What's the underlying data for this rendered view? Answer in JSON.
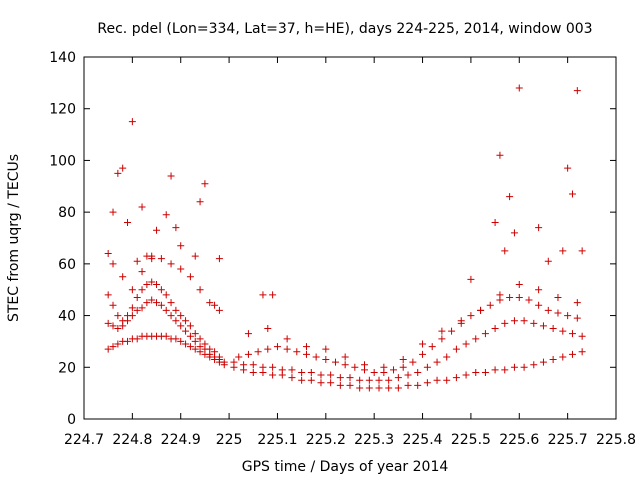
{
  "chart_data": {
    "type": "scatter",
    "title": "Rec. pdel (Lon=334, Lat=37, h=HE), days 224-225, 2014, window 003",
    "xlabel": "GPS time / Days of year 2014",
    "ylabel": "STEC from uqrg / TECUs",
    "xlim": [
      224.7,
      225.8
    ],
    "ylim": [
      0,
      140
    ],
    "xticks": [
      224.7,
      224.8,
      224.9,
      225,
      225.1,
      225.2,
      225.3,
      225.4,
      225.5,
      225.6,
      225.7,
      225.8
    ],
    "xtick_labels": [
      "224.7",
      "224.8",
      "224.9",
      "225",
      "225.1",
      "225.2",
      "225.3",
      "225.4",
      "225.5",
      "225.6",
      "225.7",
      "225.8"
    ],
    "yticks": [
      0,
      20,
      40,
      60,
      80,
      100,
      120,
      140
    ],
    "ytick_labels": [
      "0",
      "20",
      "40",
      "60",
      "80",
      "100",
      "120",
      "140"
    ],
    "grid": false,
    "legend": "none",
    "marker": "+",
    "color": "#cc0000",
    "series": [
      {
        "x": [
          224.75,
          224.76,
          224.77,
          224.78,
          224.79,
          224.8,
          224.81,
          224.82,
          224.83,
          224.84,
          224.85,
          224.86,
          224.87,
          224.88,
          224.89,
          224.9,
          224.91,
          224.92,
          224.93,
          224.94,
          224.95,
          224.96,
          224.97,
          224.98,
          224.99,
          225.01,
          225.03,
          225.05,
          225.07,
          225.09,
          225.11,
          225.13,
          225.15,
          225.17,
          225.19,
          225.21,
          225.23,
          225.25,
          225.27,
          225.29,
          225.31,
          225.33,
          225.35,
          225.37,
          225.39,
          225.41,
          225.43,
          225.45,
          225.47,
          225.49,
          225.51,
          225.53,
          225.55,
          225.57,
          225.59,
          225.61,
          225.63,
          225.65,
          225.67,
          225.69,
          225.71,
          225.73
        ],
        "y": [
          27,
          28,
          29,
          30,
          30,
          31,
          31,
          32,
          32,
          32,
          32,
          32,
          32,
          31,
          31,
          30,
          29,
          28,
          27,
          26,
          25,
          24,
          23,
          22,
          21,
          20,
          19,
          18,
          18,
          17,
          17,
          16,
          15,
          15,
          14,
          14,
          13,
          13,
          12,
          12,
          12,
          12,
          12,
          13,
          13,
          14,
          15,
          15,
          16,
          17,
          18,
          18,
          19,
          19,
          20,
          20,
          21,
          22,
          23,
          24,
          25,
          26
        ]
      },
      {
        "x": [
          224.75,
          224.76,
          224.77,
          224.78,
          224.79,
          224.8,
          224.81,
          224.82,
          224.83,
          224.84,
          224.85,
          224.86,
          224.87,
          224.88,
          224.89,
          224.9,
          224.91,
          224.92,
          224.93,
          224.94,
          224.95,
          224.96,
          224.97,
          224.98,
          224.99,
          225.01,
          225.03,
          225.05,
          225.07,
          225.09,
          225.11,
          225.13,
          225.15,
          225.17,
          225.19,
          225.21,
          225.23,
          225.25,
          225.27,
          225.29,
          225.31,
          225.33,
          225.35,
          225.37,
          225.39,
          225.41,
          225.43,
          225.45,
          225.47,
          225.49,
          225.51,
          225.53,
          225.55,
          225.57,
          225.59,
          225.61,
          225.63,
          225.65,
          225.67,
          225.69,
          225.71,
          225.73
        ],
        "y": [
          37,
          36,
          35,
          36,
          38,
          40,
          42,
          43,
          45,
          46,
          45,
          44,
          42,
          40,
          38,
          36,
          34,
          32,
          30,
          28,
          27,
          25,
          24,
          23,
          22,
          22,
          21,
          21,
          20,
          20,
          19,
          19,
          18,
          18,
          17,
          17,
          16,
          16,
          15,
          15,
          15,
          15,
          16,
          17,
          18,
          20,
          22,
          24,
          27,
          29,
          31,
          33,
          35,
          37,
          38,
          38,
          37,
          36,
          35,
          34,
          33,
          32
        ]
      },
      {
        "x": [
          224.75,
          224.76,
          224.77,
          224.78,
          224.79,
          224.8,
          224.81,
          224.82,
          224.83,
          224.84,
          224.85,
          224.86,
          224.87,
          224.88,
          224.89,
          224.9,
          224.91,
          224.92,
          224.93,
          224.94,
          224.95,
          224.96,
          224.97,
          224.98,
          225.02,
          225.04,
          225.06,
          225.08,
          225.1,
          225.12,
          225.14,
          225.16,
          225.18,
          225.2,
          225.22,
          225.24,
          225.26,
          225.28,
          225.3,
          225.32,
          225.34,
          225.36,
          225.38,
          225.4,
          225.42,
          225.44,
          225.46,
          225.48,
          225.5,
          225.52,
          225.54,
          225.56,
          225.58,
          225.6,
          225.62,
          225.64,
          225.66,
          225.68,
          225.7,
          225.72
        ],
        "y": [
          48,
          44,
          40,
          38,
          40,
          43,
          47,
          50,
          52,
          53,
          52,
          50,
          48,
          45,
          42,
          40,
          38,
          36,
          33,
          31,
          29,
          27,
          26,
          24,
          24,
          25,
          26,
          27,
          28,
          27,
          26,
          25,
          24,
          23,
          22,
          21,
          20,
          19,
          18,
          18,
          19,
          20,
          22,
          25,
          28,
          31,
          34,
          37,
          40,
          42,
          44,
          46,
          47,
          47,
          46,
          44,
          42,
          41,
          40,
          39
        ]
      },
      {
        "x": [
          224.76,
          224.78,
          224.8,
          224.82,
          224.84,
          224.86,
          224.88,
          224.9,
          224.92,
          224.94,
          224.96,
          224.98,
          225.04,
          225.08,
          225.12,
          225.16,
          225.2,
          225.24,
          225.28,
          225.32,
          225.36,
          225.4,
          225.44,
          225.48,
          225.52,
          225.56,
          225.6,
          225.64,
          225.68,
          225.72
        ],
        "y": [
          60,
          55,
          50,
          57,
          63,
          62,
          60,
          58,
          55,
          50,
          45,
          42,
          33,
          35,
          31,
          28,
          27,
          24,
          21,
          20,
          23,
          29,
          34,
          38,
          42,
          48,
          52,
          50,
          47,
          45
        ]
      },
      {
        "x": [
          224.75,
          224.76,
          224.77,
          224.78,
          224.79,
          224.8,
          224.81,
          224.82,
          224.83,
          224.84,
          224.85,
          224.87,
          224.88,
          224.89,
          224.9,
          224.93,
          224.94,
          224.95,
          224.97,
          224.98,
          225.07,
          225.09,
          225.5,
          225.55,
          225.56,
          225.57,
          225.58,
          225.59,
          225.6,
          225.64,
          225.66,
          225.69,
          225.7,
          225.71,
          225.72,
          225.73
        ],
        "y": [
          64,
          80,
          95,
          97,
          76,
          115,
          61,
          82,
          63,
          62,
          73,
          79,
          94,
          74,
          67,
          63,
          84,
          91,
          44,
          62,
          48,
          48,
          54,
          76,
          102,
          65,
          86,
          72,
          128,
          74,
          61,
          65,
          97,
          87,
          127,
          65
        ]
      }
    ]
  }
}
